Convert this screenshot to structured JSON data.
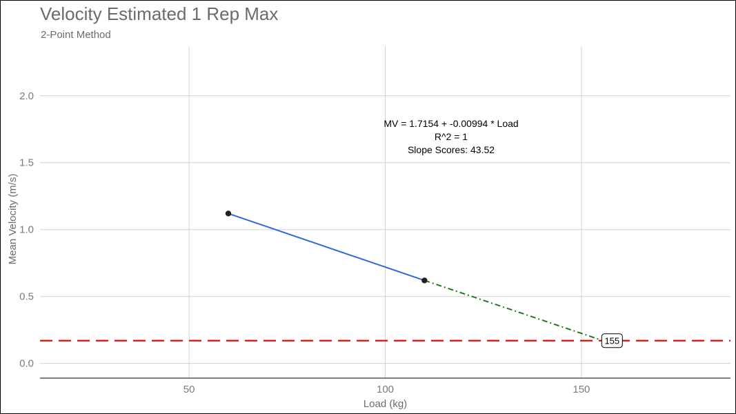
{
  "chart_data": {
    "type": "line",
    "title": "Velocity Estimated 1 Rep Max",
    "subtitle": "2-Point Method",
    "xlabel": "Load (kg)",
    "ylabel": "Mean Velocity (m/s)",
    "xlim": [
      12,
      188
    ],
    "ylim": [
      -0.11,
      2.37
    ],
    "x_ticks": [
      50,
      100,
      150
    ],
    "x_tick_labels": [
      "50",
      "100",
      "150"
    ],
    "y_ticks": [
      0.0,
      0.5,
      1.0,
      1.5,
      2.0
    ],
    "y_tick_labels": [
      "0.0",
      "0.5",
      "1.0",
      "1.5",
      "2.0"
    ],
    "grid": true,
    "points": [
      {
        "x": 60,
        "y": 1.12
      },
      {
        "x": 110,
        "y": 0.62
      }
    ],
    "fit_line": {
      "x": [
        60,
        110
      ],
      "y": [
        1.12,
        0.62
      ],
      "color": "#3366dd"
    },
    "extrapolation": {
      "x": [
        110,
        155
      ],
      "y": [
        0.62,
        0.175
      ],
      "color": "#1f7a1f",
      "style": "dot-dash"
    },
    "mvt_threshold": {
      "y": 0.17,
      "color": "#e00000",
      "style": "dashed"
    },
    "estimate_label": {
      "x": 155,
      "y": 0.17,
      "text": "155"
    },
    "annotation": {
      "x": 108,
      "y": 1.8,
      "lines": [
        "MV = 1.7154 + -0.00994 * Load",
        "R^2 = 1",
        "Slope Scores: 43.52"
      ]
    }
  }
}
